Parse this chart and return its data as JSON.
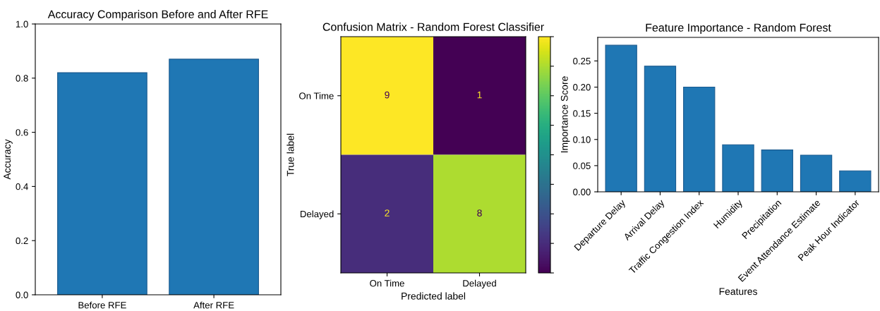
{
  "chart_data": [
    {
      "type": "bar",
      "title": "Accuracy Comparison Before and After RFE",
      "ylabel": "Accuracy",
      "categories": [
        "Before RFE",
        "After RFE"
      ],
      "values": [
        0.82,
        0.87
      ],
      "color": "#1f77b4",
      "ylim": [
        0,
        1
      ],
      "yticks": [
        {
          "value": 0,
          "label": "0.0"
        },
        0.2,
        0.4,
        0.6,
        0.8,
        {
          "value": 1,
          "label": "1.0"
        }
      ]
    },
    {
      "type": "heatmap",
      "title": "Confusion Matrix - Random Forest Classifier",
      "xlabel": "Predicted label",
      "ylabel": "True label",
      "categories": [
        "On Time",
        "Delayed"
      ],
      "y_categories": [
        "On Time",
        "Delayed"
      ],
      "cells": [
        [
          9,
          1
        ],
        [
          2,
          8
        ]
      ],
      "data_labels": true
    },
    {
      "type": "bar",
      "title": "Feature Importance - Random Forest",
      "xlabel": "Features",
      "ylabel": "Importance Score",
      "categories": [
        "Departure Delay",
        "Arrival Delay",
        "Traffic Congestion Index",
        "Humidity",
        "Precipitation",
        "Event Attendance Estimate",
        "Peak Hour Indicator"
      ],
      "values": [
        0.28,
        0.24,
        0.2,
        0.09,
        0.08,
        0.07,
        0.04
      ],
      "color": "#1f77b4",
      "ylim": [
        0,
        0.295
      ],
      "yticks": [
        {
          "value": 0,
          "label": "0.00"
        },
        0.05,
        {
          "value": 0.1,
          "label": "0.10"
        },
        0.15,
        {
          "value": 0.2,
          "label": "0.20"
        },
        0.25
      ]
    }
  ]
}
